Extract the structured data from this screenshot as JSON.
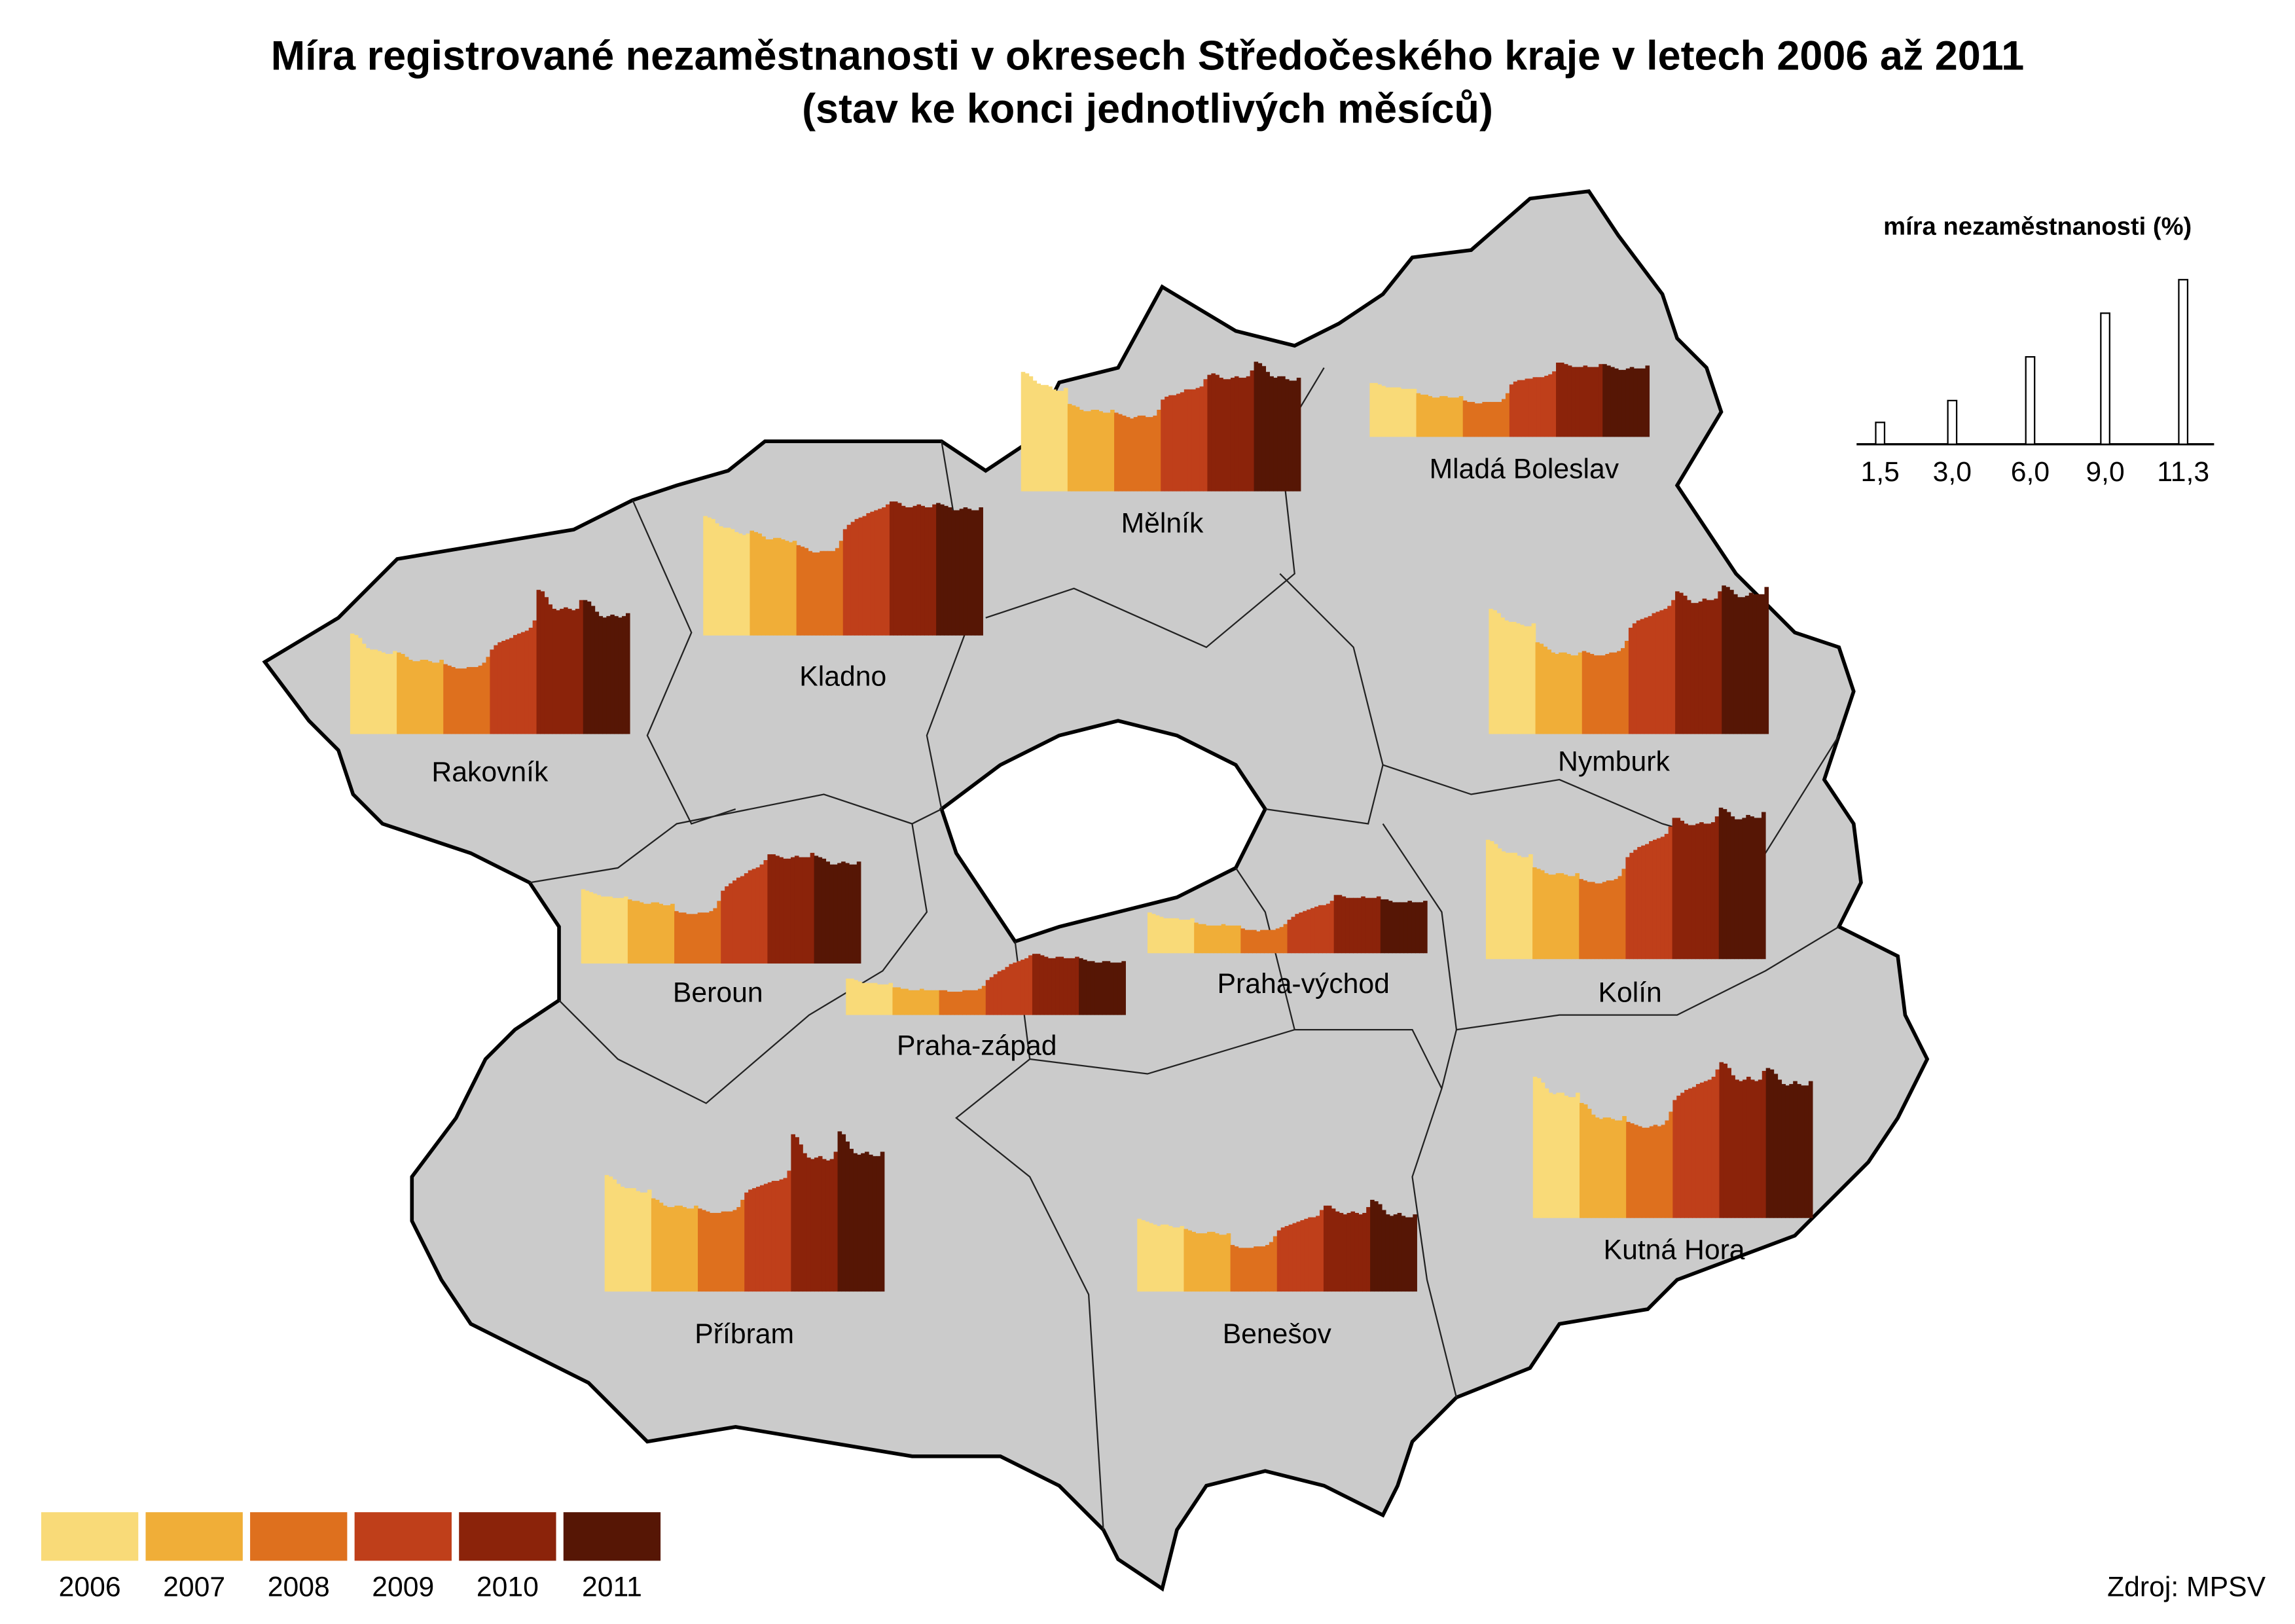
{
  "chart_data": {
    "type": "map-minibars",
    "title": "Míra registrované nezaměstnanosti v okresech Středočeského kraje v letech 2006 až 2011",
    "subtitle": "(stav ke konci jednotlivých měsíců)",
    "source": "Zdroj: MPSV",
    "years": [
      "2006",
      "2007",
      "2008",
      "2009",
      "2010",
      "2011"
    ],
    "colors": [
      "#f9da78",
      "#f0ae38",
      "#de701e",
      "#bf3f1a",
      "#8b230a",
      "#561605"
    ],
    "size_legend": {
      "title": "míra nezaměstnanosti (%)",
      "ticks": [
        {
          "value": 1.5,
          "label": "1,5"
        },
        {
          "value": 3.0,
          "label": "3,0"
        },
        {
          "value": 6.0,
          "label": "6,0"
        },
        {
          "value": 9.0,
          "label": "9,0"
        },
        {
          "value": 11.3,
          "label": "11,3"
        }
      ]
    },
    "districts": [
      {
        "name": "Mělník",
        "values": [
          [
            8.2,
            8.1,
            7.9,
            7.6,
            7.4,
            7.3,
            7.3,
            7.2,
            7.0,
            6.9,
            6.9,
            7.1
          ],
          [
            6.0,
            5.9,
            5.8,
            5.6,
            5.5,
            5.5,
            5.6,
            5.6,
            5.5,
            5.4,
            5.4,
            5.6
          ],
          [
            5.4,
            5.3,
            5.2,
            5.1,
            5.0,
            5.1,
            5.2,
            5.2,
            5.1,
            5.1,
            5.2,
            5.6
          ],
          [
            6.3,
            6.5,
            6.6,
            6.6,
            6.7,
            6.8,
            7.0,
            7.0,
            7.0,
            7.1,
            7.2,
            7.7
          ],
          [
            8.0,
            8.1,
            8.0,
            7.8,
            7.7,
            7.7,
            7.8,
            7.9,
            7.8,
            7.8,
            7.9,
            8.3
          ],
          [
            8.9,
            8.8,
            8.6,
            8.2,
            7.9,
            7.8,
            7.9,
            7.9,
            7.7,
            7.6,
            7.6,
            7.8
          ]
        ]
      },
      {
        "name": "Mladá Boleslav",
        "values": [
          [
            3.7,
            3.7,
            3.6,
            3.5,
            3.4,
            3.4,
            3.4,
            3.4,
            3.3,
            3.3,
            3.3,
            3.3
          ],
          [
            3.0,
            2.9,
            2.9,
            2.8,
            2.7,
            2.7,
            2.8,
            2.8,
            2.7,
            2.7,
            2.7,
            2.8
          ],
          [
            2.5,
            2.4,
            2.4,
            2.3,
            2.3,
            2.4,
            2.4,
            2.4,
            2.4,
            2.4,
            2.6,
            3.0
          ],
          [
            3.6,
            3.8,
            3.9,
            3.9,
            4.0,
            4.0,
            4.1,
            4.1,
            4.1,
            4.2,
            4.3,
            4.5
          ],
          [
            5.1,
            5.1,
            5.0,
            4.9,
            4.8,
            4.8,
            4.8,
            4.9,
            4.8,
            4.8,
            4.8,
            5.0
          ],
          [
            5.0,
            4.9,
            4.8,
            4.7,
            4.6,
            4.6,
            4.7,
            4.8,
            4.7,
            4.7,
            4.7,
            4.9
          ]
        ]
      },
      {
        "name": "Kladno",
        "values": [
          [
            8.2,
            8.1,
            8.0,
            7.7,
            7.5,
            7.4,
            7.4,
            7.3,
            7.1,
            7.0,
            6.9,
            7.0
          ],
          [
            7.2,
            7.1,
            7.0,
            6.8,
            6.6,
            6.6,
            6.7,
            6.7,
            6.6,
            6.5,
            6.4,
            6.5
          ],
          [
            6.2,
            6.1,
            6.0,
            5.8,
            5.7,
            5.7,
            5.8,
            5.8,
            5.8,
            5.8,
            6.0,
            6.5
          ],
          [
            7.3,
            7.6,
            7.8,
            8.0,
            8.1,
            8.2,
            8.4,
            8.5,
            8.6,
            8.7,
            8.8,
            9.0
          ],
          [
            9.2,
            9.2,
            9.1,
            8.9,
            8.8,
            8.8,
            8.9,
            9.0,
            8.9,
            8.8,
            8.8,
            9.0
          ],
          [
            9.1,
            9.0,
            8.9,
            8.8,
            8.6,
            8.6,
            8.7,
            8.8,
            8.7,
            8.6,
            8.6,
            8.8
          ]
        ]
      },
      {
        "name": "Rakovník",
        "values": [
          [
            6.9,
            6.8,
            6.6,
            6.2,
            5.9,
            5.8,
            5.8,
            5.7,
            5.6,
            5.5,
            5.5,
            5.7
          ],
          [
            5.6,
            5.5,
            5.3,
            5.1,
            5.0,
            5.0,
            5.1,
            5.1,
            5.0,
            4.9,
            4.9,
            5.1
          ],
          [
            4.8,
            4.7,
            4.6,
            4.5,
            4.5,
            4.5,
            4.6,
            4.6,
            4.6,
            4.7,
            4.9,
            5.3
          ],
          [
            5.8,
            6.1,
            6.3,
            6.4,
            6.5,
            6.6,
            6.8,
            6.9,
            7.0,
            7.1,
            7.3,
            7.8
          ],
          [
            9.9,
            9.8,
            9.4,
            8.9,
            8.6,
            8.5,
            8.6,
            8.7,
            8.6,
            8.5,
            8.6,
            9.2
          ],
          [
            9.2,
            9.1,
            8.8,
            8.4,
            8.1,
            8.0,
            8.1,
            8.2,
            8.1,
            8.0,
            8.1,
            8.3
          ]
        ]
      },
      {
        "name": "Nymburk",
        "values": [
          [
            8.6,
            8.5,
            8.3,
            8.0,
            7.8,
            7.7,
            7.7,
            7.6,
            7.5,
            7.4,
            7.4,
            7.6
          ],
          [
            6.3,
            6.2,
            6.0,
            5.8,
            5.6,
            5.5,
            5.6,
            5.6,
            5.5,
            5.4,
            5.4,
            5.6
          ],
          [
            5.7,
            5.6,
            5.5,
            5.4,
            5.4,
            5.4,
            5.5,
            5.6,
            5.6,
            5.7,
            5.9,
            6.4
          ],
          [
            7.3,
            7.6,
            7.8,
            7.9,
            8.0,
            8.1,
            8.3,
            8.4,
            8.5,
            8.6,
            8.8,
            9.2
          ],
          [
            9.8,
            9.7,
            9.5,
            9.2,
            9.0,
            9.0,
            9.1,
            9.3,
            9.2,
            9.2,
            9.3,
            9.8
          ],
          [
            10.2,
            10.1,
            9.9,
            9.6,
            9.4,
            9.4,
            9.5,
            9.7,
            9.6,
            9.6,
            9.6,
            10.1
          ]
        ]
      },
      {
        "name": "Beroun",
        "values": [
          [
            5.1,
            5.0,
            4.9,
            4.8,
            4.7,
            4.6,
            4.6,
            4.6,
            4.5,
            4.5,
            4.5,
            4.6
          ],
          [
            4.4,
            4.3,
            4.3,
            4.2,
            4.1,
            4.1,
            4.2,
            4.2,
            4.1,
            4.0,
            4.0,
            4.1
          ],
          [
            3.6,
            3.5,
            3.5,
            3.4,
            3.4,
            3.4,
            3.5,
            3.5,
            3.5,
            3.6,
            3.8,
            4.3
          ],
          [
            5.0,
            5.3,
            5.5,
            5.7,
            5.9,
            6.0,
            6.2,
            6.4,
            6.5,
            6.6,
            6.8,
            7.1
          ],
          [
            7.5,
            7.5,
            7.4,
            7.3,
            7.2,
            7.2,
            7.3,
            7.4,
            7.3,
            7.3,
            7.3,
            7.6
          ],
          [
            7.4,
            7.3,
            7.2,
            7.0,
            6.8,
            6.8,
            6.9,
            7.0,
            6.9,
            6.8,
            6.8,
            7.0
          ]
        ]
      },
      {
        "name": "Praha-západ",
        "values": [
          [
            2.5,
            2.5,
            2.4,
            2.3,
            2.2,
            2.2,
            2.2,
            2.2,
            2.1,
            2.1,
            2.1,
            2.2
          ],
          [
            1.9,
            1.9,
            1.8,
            1.8,
            1.7,
            1.7,
            1.7,
            1.8,
            1.7,
            1.7,
            1.7,
            1.7
          ],
          [
            1.7,
            1.7,
            1.6,
            1.6,
            1.6,
            1.6,
            1.7,
            1.7,
            1.7,
            1.7,
            1.8,
            2.0
          ],
          [
            2.4,
            2.6,
            2.8,
            3.0,
            3.1,
            3.3,
            3.5,
            3.6,
            3.7,
            3.8,
            3.9,
            4.1
          ],
          [
            4.2,
            4.2,
            4.1,
            4.0,
            3.9,
            3.9,
            4.0,
            4.0,
            3.9,
            3.9,
            3.9,
            4.0
          ],
          [
            3.9,
            3.8,
            3.7,
            3.7,
            3.6,
            3.6,
            3.7,
            3.7,
            3.6,
            3.6,
            3.6,
            3.7
          ]
        ]
      },
      {
        "name": "Praha-východ",
        "values": [
          [
            2.8,
            2.7,
            2.6,
            2.5,
            2.4,
            2.4,
            2.4,
            2.4,
            2.3,
            2.3,
            2.3,
            2.4
          ],
          [
            2.1,
            2.0,
            2.0,
            1.9,
            1.9,
            1.9,
            1.9,
            2.0,
            1.9,
            1.9,
            1.9,
            1.9
          ],
          [
            1.7,
            1.6,
            1.6,
            1.6,
            1.5,
            1.6,
            1.6,
            1.6,
            1.6,
            1.7,
            1.8,
            2.0
          ],
          [
            2.3,
            2.5,
            2.7,
            2.8,
            2.9,
            3.0,
            3.1,
            3.2,
            3.3,
            3.3,
            3.4,
            3.6
          ],
          [
            4.0,
            4.0,
            3.9,
            3.8,
            3.8,
            3.8,
            3.8,
            3.9,
            3.8,
            3.8,
            3.8,
            3.9
          ],
          [
            3.7,
            3.7,
            3.6,
            3.5,
            3.5,
            3.5,
            3.5,
            3.6,
            3.5,
            3.5,
            3.5,
            3.6
          ]
        ]
      },
      {
        "name": "Kolín",
        "values": [
          [
            8.2,
            8.1,
            7.9,
            7.6,
            7.4,
            7.3,
            7.3,
            7.3,
            7.1,
            7.0,
            7.0,
            7.2
          ],
          [
            6.3,
            6.2,
            6.1,
            5.9,
            5.8,
            5.8,
            5.9,
            5.9,
            5.8,
            5.7,
            5.7,
            5.9
          ],
          [
            5.5,
            5.4,
            5.3,
            5.3,
            5.2,
            5.2,
            5.3,
            5.4,
            5.4,
            5.5,
            5.7,
            6.2
          ],
          [
            7.0,
            7.3,
            7.5,
            7.7,
            7.8,
            7.9,
            8.1,
            8.2,
            8.3,
            8.4,
            8.6,
            9.1
          ],
          [
            9.7,
            9.7,
            9.5,
            9.3,
            9.2,
            9.2,
            9.3,
            9.4,
            9.3,
            9.3,
            9.4,
            9.8
          ],
          [
            10.4,
            10.3,
            10.1,
            9.8,
            9.6,
            9.6,
            9.7,
            9.9,
            9.8,
            9.7,
            9.7,
            10.1
          ]
        ]
      },
      {
        "name": "Kutná Hora",
        "values": [
          [
            9.7,
            9.6,
            9.3,
            8.9,
            8.6,
            8.5,
            8.6,
            8.6,
            8.4,
            8.3,
            8.3,
            8.6
          ],
          [
            7.9,
            7.8,
            7.5,
            7.1,
            6.9,
            6.8,
            6.9,
            6.9,
            6.8,
            6.7,
            6.7,
            7.0
          ],
          [
            6.6,
            6.5,
            6.4,
            6.3,
            6.2,
            6.2,
            6.3,
            6.4,
            6.3,
            6.4,
            6.7,
            7.3
          ],
          [
            8.1,
            8.4,
            8.6,
            8.8,
            8.9,
            9.0,
            9.2,
            9.3,
            9.4,
            9.5,
            9.7,
            10.2
          ],
          [
            10.7,
            10.6,
            10.3,
            9.8,
            9.5,
            9.4,
            9.5,
            9.7,
            9.5,
            9.4,
            9.5,
            10.1
          ],
          [
            10.3,
            10.2,
            9.9,
            9.5,
            9.2,
            9.1,
            9.2,
            9.4,
            9.2,
            9.1,
            9.1,
            9.4
          ]
        ]
      },
      {
        "name": "Příbram",
        "values": [
          [
            8.0,
            7.9,
            7.7,
            7.4,
            7.2,
            7.1,
            7.1,
            7.1,
            6.9,
            6.8,
            6.8,
            7.0
          ],
          [
            6.4,
            6.3,
            6.1,
            5.9,
            5.8,
            5.8,
            5.9,
            5.9,
            5.8,
            5.7,
            5.7,
            5.9
          ],
          [
            5.7,
            5.6,
            5.5,
            5.4,
            5.4,
            5.4,
            5.5,
            5.5,
            5.5,
            5.6,
            5.8,
            6.3
          ],
          [
            6.8,
            7.0,
            7.1,
            7.2,
            7.3,
            7.4,
            7.5,
            7.6,
            7.6,
            7.7,
            7.8,
            8.3
          ],
          [
            10.8,
            10.6,
            10.1,
            9.5,
            9.2,
            9.1,
            9.2,
            9.3,
            9.1,
            9.0,
            9.1,
            9.6
          ],
          [
            11.0,
            10.8,
            10.3,
            9.8,
            9.5,
            9.4,
            9.5,
            9.6,
            9.4,
            9.3,
            9.3,
            9.6
          ]
        ]
      },
      {
        "name": "Benešov",
        "values": [
          [
            5.0,
            4.9,
            4.8,
            4.7,
            4.6,
            4.5,
            4.6,
            4.6,
            4.5,
            4.4,
            4.4,
            4.5
          ],
          [
            4.3,
            4.2,
            4.1,
            4.0,
            4.0,
            4.0,
            4.1,
            4.1,
            4.0,
            3.9,
            3.9,
            4.0
          ],
          [
            3.2,
            3.1,
            3.0,
            3.0,
            3.0,
            3.0,
            3.1,
            3.1,
            3.1,
            3.2,
            3.4,
            3.8
          ],
          [
            4.2,
            4.4,
            4.5,
            4.6,
            4.7,
            4.8,
            4.9,
            5.0,
            5.1,
            5.1,
            5.2,
            5.6
          ],
          [
            5.9,
            5.9,
            5.7,
            5.5,
            5.4,
            5.3,
            5.4,
            5.5,
            5.4,
            5.3,
            5.4,
            5.8
          ],
          [
            6.3,
            6.2,
            6.0,
            5.6,
            5.3,
            5.2,
            5.3,
            5.4,
            5.2,
            5.1,
            5.1,
            5.3
          ]
        ]
      }
    ]
  }
}
